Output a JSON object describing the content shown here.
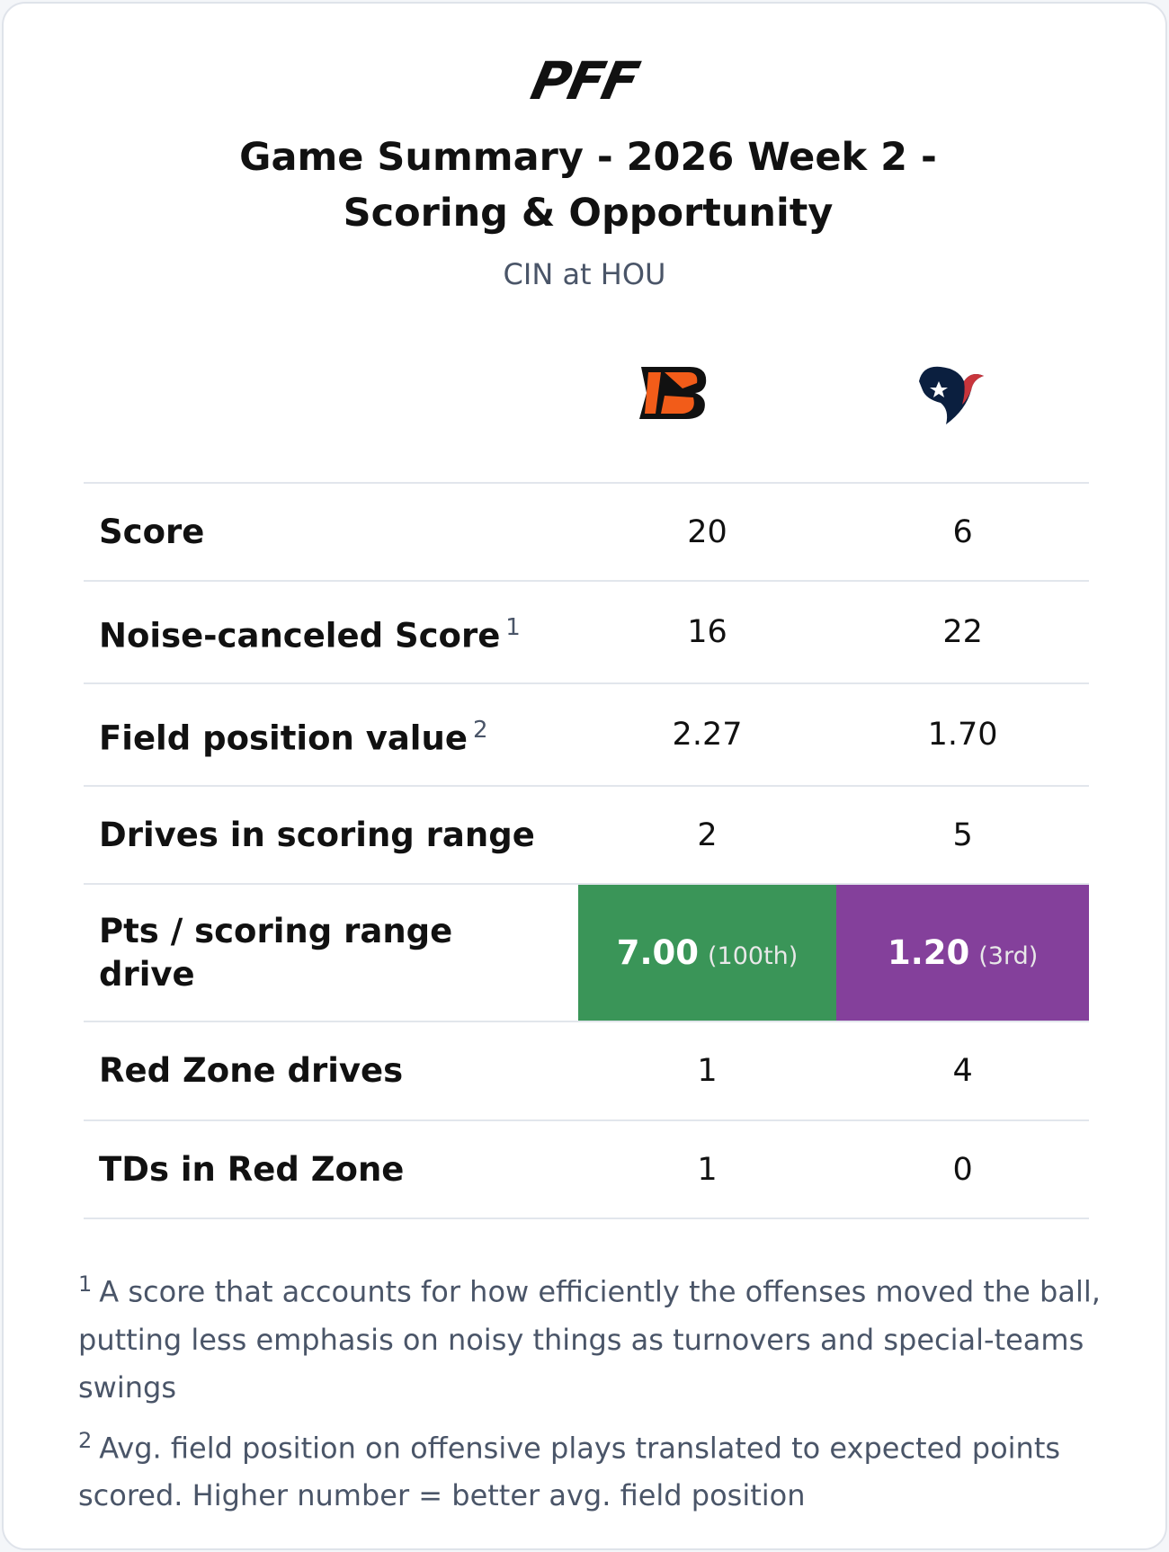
{
  "header": {
    "logo": "PFF",
    "title": "Game Summary - 2026 Week 2 - Scoring & Opportunity",
    "subtitle": "CIN at HOU"
  },
  "table": {
    "highlight_colors": [
      "#3a9558",
      "#84409b"
    ],
    "rows": [
      {
        "label": "Score",
        "values": [
          "20",
          "6"
        ]
      },
      {
        "label": "Noise-canceled Score",
        "note": "1",
        "values": [
          "16",
          "22"
        ]
      },
      {
        "label": "Field position value",
        "note": "2",
        "values": [
          "2.27",
          "1.70"
        ]
      },
      {
        "label": "Drives in scoring range",
        "values": [
          "2",
          "5"
        ]
      },
      {
        "label": "Pts / scoring range drive",
        "values": [
          "7.00",
          "1.20"
        ],
        "ranks": [
          "(100th)",
          "(3rd)"
        ],
        "highlight": true
      },
      {
        "label": "Red Zone drives",
        "values": [
          "1",
          "4"
        ]
      },
      {
        "label": "TDs in Red Zone",
        "values": [
          "1",
          "0"
        ]
      }
    ]
  },
  "footnotes": [
    {
      "marker": "1",
      "text": "A score that accounts for how efficiently the offenses moved the ball, putting less emphasis on noisy things as turnovers and special-teams swings"
    },
    {
      "marker": "2",
      "text": "Avg. field position on offensive plays translated to expected points scored. Higher number = better avg. field position"
    }
  ]
}
